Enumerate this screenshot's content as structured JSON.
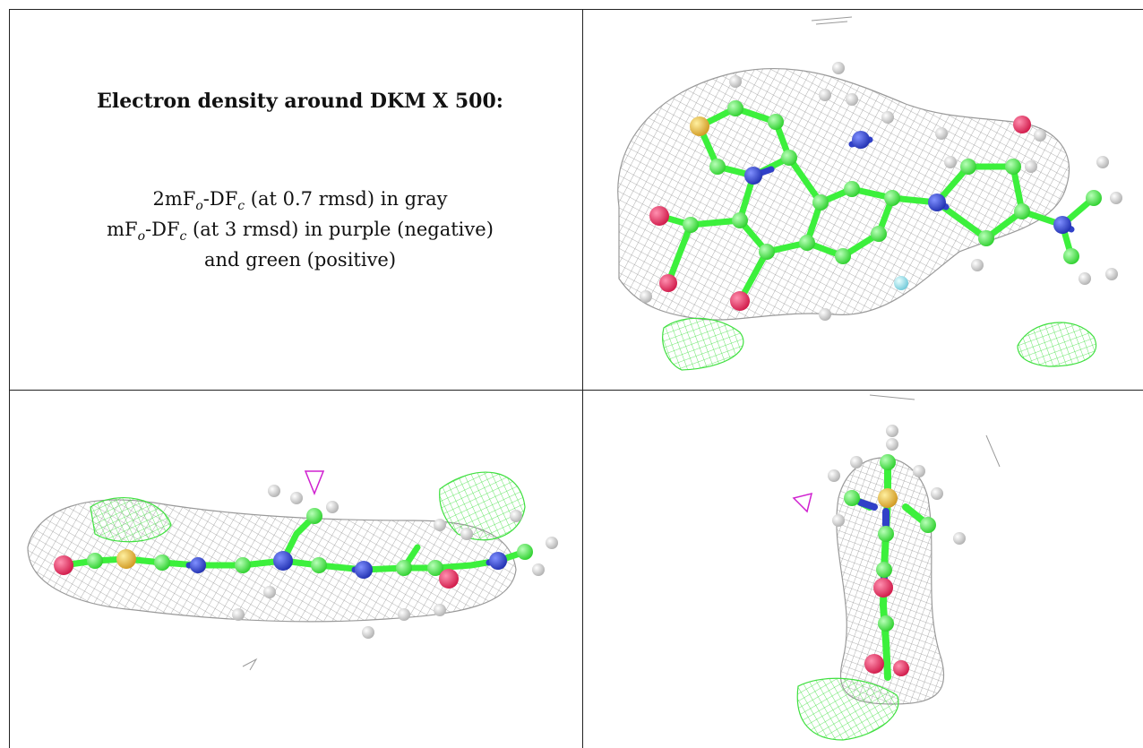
{
  "caption": {
    "title": "Electron density around DKM X 500:",
    "line1": {
      "prefix": "2mF",
      "sub1": "o",
      "mid": "-DF",
      "sub2": "c",
      "suffix": " (at 0.7 rmsd) in gray"
    },
    "line2": {
      "prefix": "mF",
      "sub1": "o",
      "mid": "-DF",
      "sub2": "c",
      "suffix": " (at 3 rmsd) in purple (negative)"
    },
    "line3": "and green (positive)"
  },
  "colors": {
    "mesh_gray": "#9a9a9a",
    "mesh_purple": "#d020d0",
    "mesh_green": "#40e040",
    "carbon": "#3cf03c",
    "nitrogen": "#3040c8",
    "oxygen": "#e8285a",
    "sulfur": "#e8b830",
    "fluorine": "#a0e8f0",
    "hydrogen": "#e4e4e4"
  }
}
